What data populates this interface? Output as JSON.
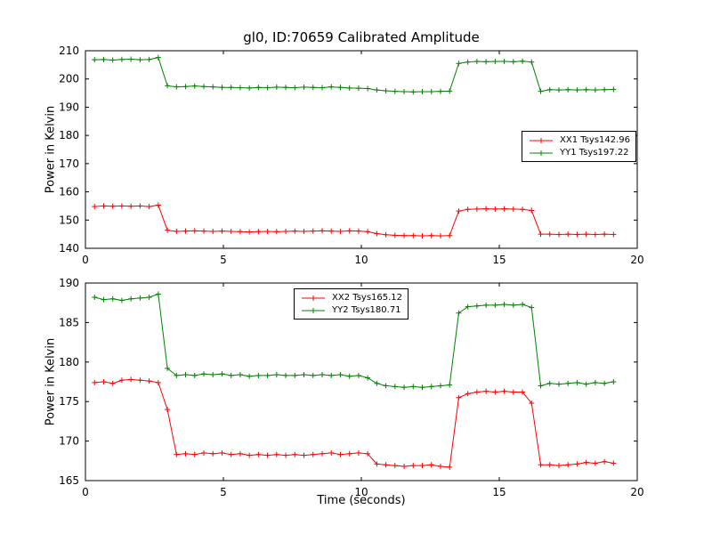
{
  "chart_data": {
    "type": "line",
    "title": "gl0, ID:70659 Calibrated Amplitude",
    "xlabel": "Time (seconds)",
    "marker": "plus",
    "x": [
      0.33,
      0.66,
      0.99,
      1.32,
      1.65,
      1.98,
      2.31,
      2.64,
      2.97,
      3.3,
      3.63,
      3.96,
      4.29,
      4.62,
      4.95,
      5.28,
      5.61,
      5.94,
      6.27,
      6.6,
      6.93,
      7.26,
      7.59,
      7.92,
      8.25,
      8.58,
      8.91,
      9.24,
      9.57,
      9.9,
      10.23,
      10.56,
      10.89,
      11.22,
      11.55,
      11.88,
      12.21,
      12.54,
      12.87,
      13.2,
      13.53,
      13.86,
      14.19,
      14.52,
      14.85,
      15.18,
      15.51,
      15.84,
      16.17,
      16.5,
      16.83,
      17.16,
      17.49,
      17.82,
      18.15,
      18.48,
      18.81,
      19.14
    ],
    "subplots": [
      {
        "ylabel": "Power in Kelvin",
        "xlim": [
          0,
          20
        ],
        "ylim": [
          140,
          210
        ],
        "xticks": [
          0,
          5,
          10,
          15,
          20
        ],
        "yticks": [
          140,
          150,
          160,
          170,
          180,
          190,
          200,
          210
        ],
        "legend_position": "center-right",
        "series": [
          {
            "name": "XX1 Tsys142.96",
            "color": "#ff0000",
            "values": [
              154.8,
              155.0,
              154.9,
              155.0,
              154.9,
              155.0,
              154.8,
              155.3,
              146.4,
              146.0,
              146.1,
              146.2,
              146.1,
              146.0,
              146.1,
              146.0,
              145.9,
              145.8,
              145.9,
              146.0,
              145.9,
              146.0,
              146.1,
              146.0,
              146.1,
              146.2,
              146.1,
              146.0,
              146.2,
              146.1,
              145.9,
              145.2,
              144.8,
              144.6,
              144.5,
              144.5,
              144.4,
              144.5,
              144.4,
              144.5,
              153.2,
              153.8,
              153.9,
              154.0,
              153.9,
              154.0,
              153.9,
              153.8,
              153.4,
              145.0,
              145.0,
              144.9,
              145.0,
              144.9,
              145.0,
              144.9,
              145.0,
              144.9
            ]
          },
          {
            "name": "YY1 Tsys197.22",
            "color": "#008000",
            "values": [
              206.8,
              206.9,
              206.7,
              206.9,
              207.0,
              206.8,
              206.9,
              207.6,
              197.6,
              197.2,
              197.3,
              197.5,
              197.3,
              197.2,
              197.0,
              197.0,
              196.9,
              196.8,
              197.0,
              196.9,
              197.1,
              197.0,
              196.9,
              197.1,
              197.0,
              196.9,
              197.2,
              197.0,
              196.8,
              196.7,
              196.6,
              196.1,
              195.8,
              195.6,
              195.5,
              195.4,
              195.5,
              195.5,
              195.6,
              195.7,
              205.5,
              206.0,
              206.2,
              206.1,
              206.2,
              206.2,
              206.1,
              206.3,
              206.0,
              195.6,
              196.2,
              196.1,
              196.2,
              196.1,
              196.2,
              196.1,
              196.2,
              196.3
            ]
          }
        ]
      },
      {
        "ylabel": "Power in Kelvin",
        "xlim": [
          0,
          20
        ],
        "ylim": [
          165,
          190
        ],
        "xticks": [
          0,
          5,
          10,
          15,
          20
        ],
        "yticks": [
          165,
          170,
          175,
          180,
          185,
          190
        ],
        "legend_position": "top-center",
        "series": [
          {
            "name": "XX2 Tsys165.12",
            "color": "#ff0000",
            "values": [
              177.4,
              177.5,
              177.3,
              177.7,
              177.8,
              177.7,
              177.6,
              177.4,
              174.0,
              168.3,
              168.4,
              168.3,
              168.5,
              168.4,
              168.5,
              168.3,
              168.4,
              168.2,
              168.3,
              168.2,
              168.3,
              168.2,
              168.3,
              168.2,
              168.3,
              168.4,
              168.5,
              168.3,
              168.4,
              168.5,
              168.4,
              167.1,
              167.0,
              166.9,
              166.8,
              166.9,
              166.9,
              167.0,
              166.8,
              166.7,
              175.5,
              176.0,
              176.2,
              176.3,
              176.2,
              176.3,
              176.2,
              176.2,
              174.8,
              167.0,
              167.0,
              166.9,
              167.0,
              167.1,
              167.3,
              167.2,
              167.4,
              167.2
            ]
          },
          {
            "name": "YY2 Tsys180.71",
            "color": "#008000",
            "values": [
              188.2,
              187.9,
              188.0,
              187.8,
              188.0,
              188.1,
              188.2,
              188.6,
              179.2,
              178.3,
              178.4,
              178.3,
              178.5,
              178.4,
              178.5,
              178.3,
              178.4,
              178.2,
              178.3,
              178.3,
              178.4,
              178.3,
              178.3,
              178.4,
              178.3,
              178.4,
              178.3,
              178.4,
              178.2,
              178.3,
              178.0,
              177.3,
              177.0,
              176.9,
              176.8,
              176.9,
              176.8,
              176.9,
              177.0,
              177.1,
              186.2,
              187.0,
              187.1,
              187.2,
              187.2,
              187.3,
              187.2,
              187.3,
              186.9,
              177.0,
              177.3,
              177.2,
              177.3,
              177.4,
              177.2,
              177.4,
              177.3,
              177.5
            ]
          }
        ]
      }
    ]
  }
}
